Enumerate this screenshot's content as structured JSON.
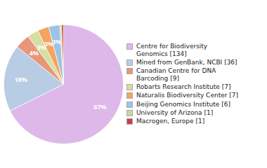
{
  "chart_data": {
    "type": "pie",
    "categories": [
      "Centre for Biodiversity\nGenomics [134]",
      "Mined from GenBank, NCBI [36]",
      "Canadian Centre for DNA\nBarcoding [9]",
      "Robarts Research Institute [7]",
      "Naturalis Biodiversity Center [7]",
      "Beijing Genomics Institute [6]",
      "University of Arizona [1]",
      "Macrogen, Europe [1]"
    ],
    "values": [
      67,
      18,
      4,
      3,
      3,
      3,
      0.5,
      0.5
    ],
    "value_labels": [
      "67%",
      "18%",
      "4%",
      "3%",
      "3%",
      "3%",
      null,
      null
    ],
    "colors": [
      "#ddb8e8",
      "#b8cce4",
      "#e8967a",
      "#d4dfa0",
      "#f4a460",
      "#9dc3e6",
      "#c6d9a0",
      "#c84040"
    ],
    "data_labels": true,
    "legend": "right"
  }
}
